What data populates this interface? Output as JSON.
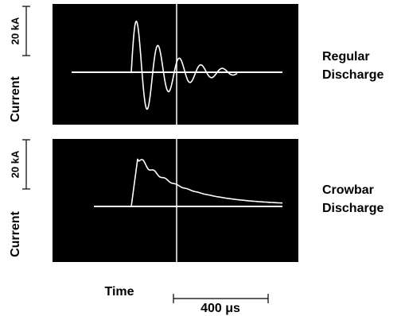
{
  "top_panel": {
    "scale_label": "20 kA",
    "axis_label": "Current",
    "caption": [
      "Regular",
      "Discharge"
    ]
  },
  "bottom_panel": {
    "scale_label": "20 kA",
    "axis_label": "Current",
    "caption": [
      "Crowbar",
      "Discharge"
    ]
  },
  "time_axis": {
    "label": "Time",
    "scale_label": "400 μs"
  }
}
